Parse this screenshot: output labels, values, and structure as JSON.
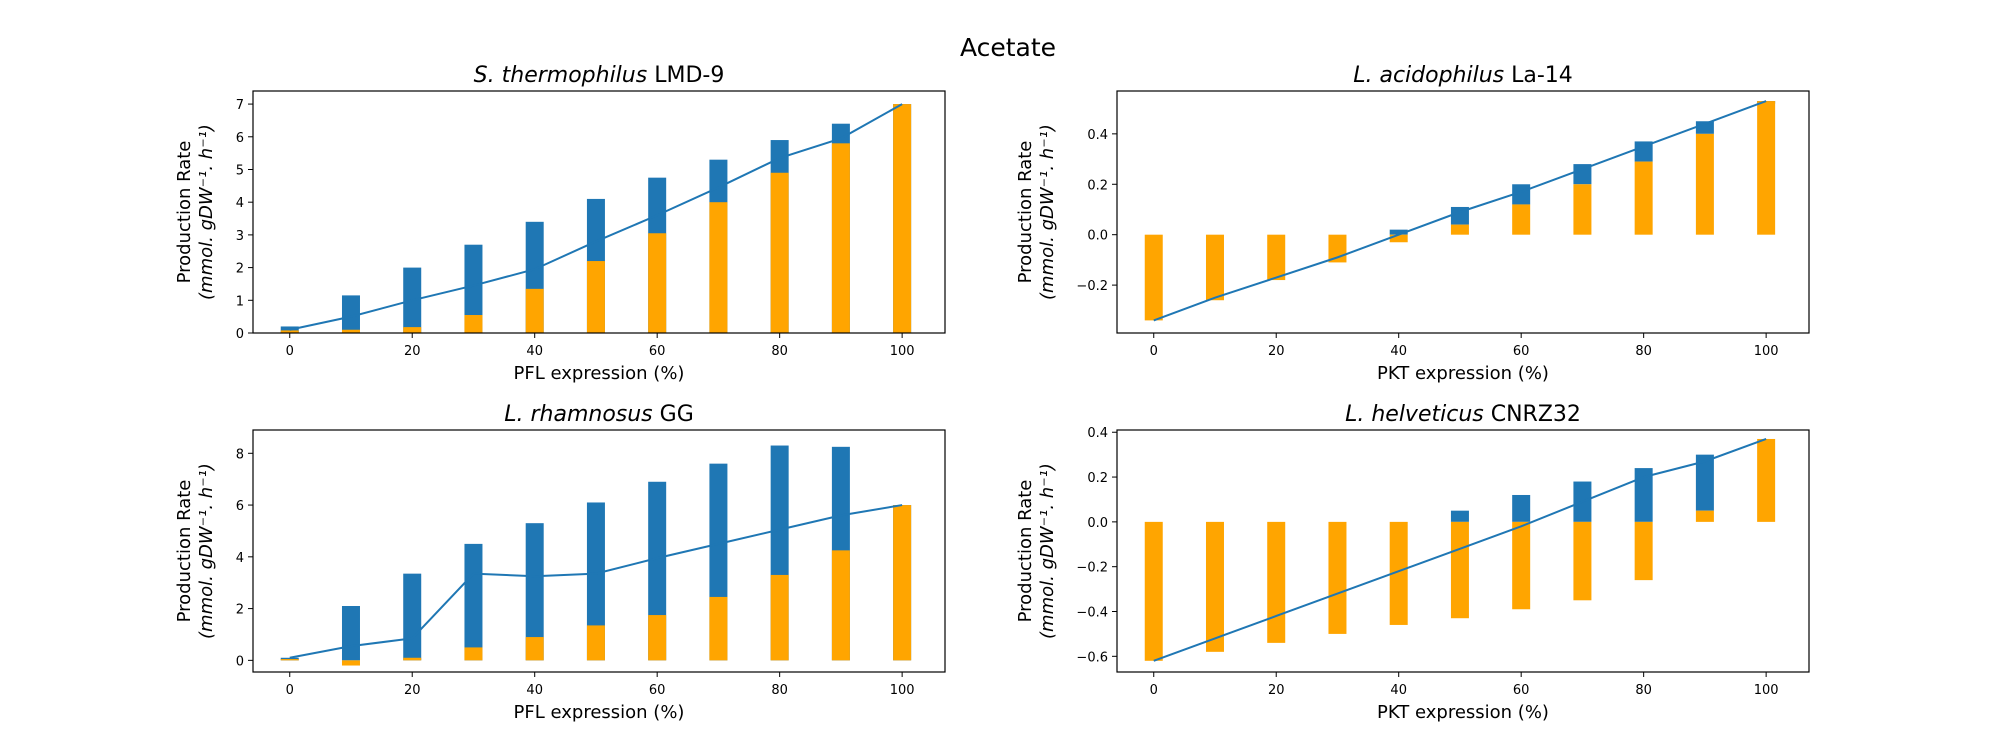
{
  "figure": {
    "suptitle": "Acetate"
  },
  "colors": {
    "blue": "#1f77b4",
    "orange": "#ffa500",
    "axis": "#000000"
  },
  "chart_data": [
    {
      "type": "bar",
      "title_species": "S. thermophilus",
      "title_strain": "LMD-9",
      "xlabel": "PFL expression (%)",
      "ylabel_line1": "Production Rate",
      "ylabel_line2": "(mmol. gDW⁻¹. h⁻¹)",
      "x": [
        0,
        10,
        20,
        30,
        40,
        50,
        60,
        70,
        80,
        90,
        100
      ],
      "xticks": [
        0,
        20,
        40,
        60,
        80,
        100
      ],
      "yticks": [
        0,
        1,
        2,
        3,
        4,
        5,
        6,
        7
      ],
      "ylim": [
        0,
        7.4
      ],
      "xlim": [
        -6,
        107
      ],
      "series": [
        {
          "values_bottom": [
            0,
            0,
            0,
            0,
            0,
            0,
            0,
            0,
            0,
            0,
            0
          ],
          "values_top": [
            0.2,
            1.15,
            2.0,
            2.7,
            3.4,
            4.1,
            4.75,
            5.3,
            5.9,
            6.4,
            7.0
          ]
        },
        {
          "values_bottom": [
            0,
            0,
            0,
            0,
            0,
            0,
            0,
            0,
            0,
            0,
            0
          ],
          "values_top": [
            0.08,
            0.1,
            0.18,
            0.55,
            1.35,
            2.2,
            3.05,
            4.0,
            4.9,
            5.8,
            7.0
          ]
        }
      ],
      "line": [
        0.1,
        0.5,
        1.0,
        1.45,
        1.95,
        2.8,
        3.6,
        4.45,
        5.35,
        5.95,
        7.0
      ]
    },
    {
      "type": "bar",
      "title_species": "L. acidophilus",
      "title_strain": "La-14",
      "xlabel": "PKT expression (%)",
      "ylabel_line1": "Production Rate",
      "ylabel_line2": "(mmol. gDW⁻¹. h⁻¹)",
      "x": [
        0,
        10,
        20,
        30,
        40,
        50,
        60,
        70,
        80,
        90,
        100
      ],
      "xticks": [
        0,
        20,
        40,
        60,
        80,
        100
      ],
      "yticks": [
        -0.2,
        0.0,
        0.2,
        0.4
      ],
      "ytick_labels": [
        "−0.2",
        "0.0",
        "0.2",
        "0.4"
      ],
      "ylim": [
        -0.39,
        0.57
      ],
      "xlim": [
        -6,
        107
      ],
      "series": [
        {
          "values_bottom": [
            0,
            0,
            0,
            0,
            0.0,
            0.04,
            0.12,
            0.2,
            0.29,
            0.4,
            0.52
          ],
          "values_top": [
            0,
            0,
            0,
            0,
            0.02,
            0.11,
            0.2,
            0.28,
            0.37,
            0.45,
            0.53
          ]
        },
        {
          "values_bottom": [
            -0.34,
            -0.26,
            -0.18,
            -0.11,
            -0.03,
            0,
            0,
            0,
            0,
            0,
            0
          ],
          "values_top": [
            0,
            0,
            0,
            0,
            0,
            0.04,
            0.12,
            0.2,
            0.29,
            0.4,
            0.53
          ]
        }
      ],
      "line": [
        -0.34,
        -0.25,
        -0.17,
        -0.09,
        0.0,
        0.09,
        0.17,
        0.26,
        0.35,
        0.44,
        0.53
      ]
    },
    {
      "type": "bar",
      "title_species": "L. rhamnosus",
      "title_strain": "GG",
      "xlabel": "PFL expression (%)",
      "ylabel_line1": "Production Rate",
      "ylabel_line2": "(mmol. gDW⁻¹. h⁻¹)",
      "x": [
        0,
        10,
        20,
        30,
        40,
        50,
        60,
        70,
        80,
        90,
        100
      ],
      "xticks": [
        0,
        20,
        40,
        60,
        80,
        100
      ],
      "yticks": [
        0,
        2,
        4,
        6,
        8
      ],
      "ylim": [
        -0.45,
        8.9
      ],
      "xlim": [
        -6,
        107
      ],
      "series": [
        {
          "values_bottom": [
            0,
            0,
            0,
            0,
            0,
            0,
            0,
            0,
            0,
            0,
            0
          ],
          "values_top": [
            0.1,
            2.1,
            3.35,
            4.5,
            5.3,
            6.1,
            6.9,
            7.6,
            8.3,
            8.25,
            6.0
          ]
        },
        {
          "values_bottom": [
            0,
            -0.2,
            0,
            0,
            0,
            0,
            0,
            0,
            0,
            0,
            0
          ],
          "values_top": [
            0.05,
            0,
            0.1,
            0.5,
            0.9,
            1.35,
            1.75,
            2.45,
            3.3,
            4.25,
            6.0
          ]
        }
      ],
      "line": [
        0.1,
        0.55,
        0.85,
        3.35,
        3.25,
        3.35,
        3.95,
        4.5,
        5.05,
        5.6,
        6.0
      ]
    },
    {
      "type": "bar",
      "title_species": "L. helveticus",
      "title_strain": "CNRZ32",
      "xlabel": "PKT expression (%)",
      "ylabel_line1": "Production Rate",
      "ylabel_line2": "(mmol. gDW⁻¹. h⁻¹)",
      "x": [
        0,
        10,
        20,
        30,
        40,
        50,
        60,
        70,
        80,
        90,
        100
      ],
      "xticks": [
        0,
        20,
        40,
        60,
        80,
        100
      ],
      "yticks": [
        -0.6,
        -0.4,
        -0.2,
        0.0,
        0.2,
        0.4
      ],
      "ytick_labels": [
        "−0.6",
        "−0.4",
        "−0.2",
        "0.0",
        "0.2",
        "0.4"
      ],
      "ylim": [
        -0.67,
        0.41
      ],
      "xlim": [
        -6,
        107
      ],
      "series": [
        {
          "values_bottom": [
            0,
            0,
            0,
            0,
            0,
            0.0,
            0.0,
            0.0,
            0.0,
            0.05,
            0.37
          ],
          "values_top": [
            0,
            0,
            0,
            0,
            0,
            0.05,
            0.12,
            0.18,
            0.24,
            0.3,
            0.37
          ]
        },
        {
          "values_bottom": [
            -0.62,
            -0.58,
            -0.54,
            -0.5,
            -0.46,
            -0.43,
            -0.39,
            -0.35,
            -0.26,
            0,
            0
          ],
          "values_top": [
            0,
            0,
            0,
            0,
            0,
            0,
            0,
            0,
            0,
            0.05,
            0.37
          ]
        }
      ],
      "line": [
        -0.62,
        -0.52,
        -0.42,
        -0.32,
        -0.22,
        -0.12,
        -0.02,
        0.09,
        0.2,
        0.27,
        0.37
      ]
    }
  ]
}
